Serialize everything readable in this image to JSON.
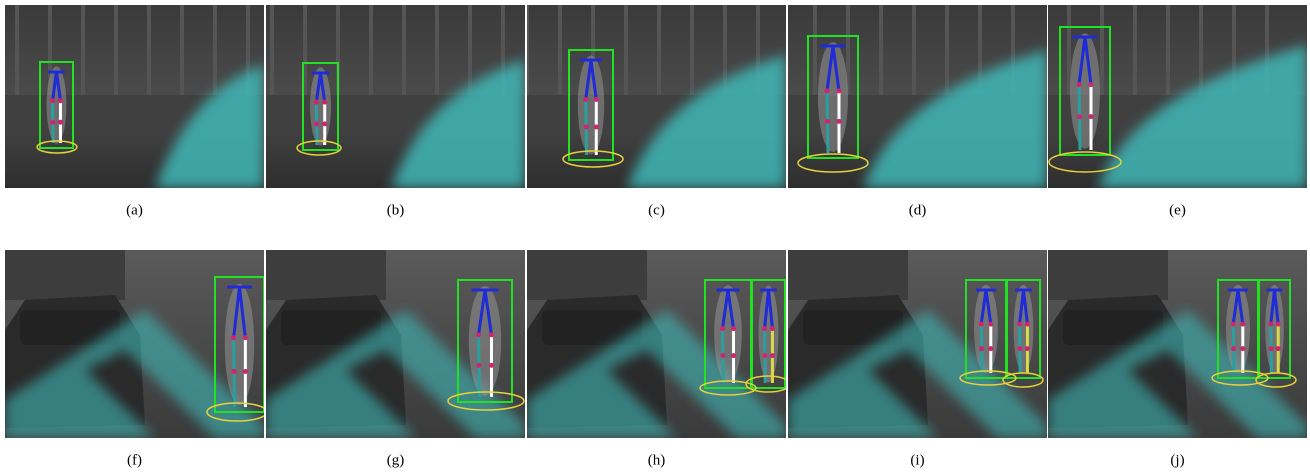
{
  "panels": [
    {
      "caption": "(a)"
    },
    {
      "caption": "(b)"
    },
    {
      "caption": "(c)"
    },
    {
      "caption": "(d)"
    },
    {
      "caption": "(e)"
    },
    {
      "caption": "(f)"
    },
    {
      "caption": "(g)"
    },
    {
      "caption": "(h)"
    },
    {
      "caption": "(i)"
    },
    {
      "caption": "(j)"
    }
  ]
}
